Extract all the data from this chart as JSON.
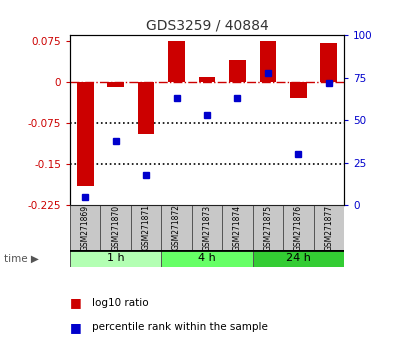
{
  "title": "GDS3259 / 40884",
  "samples": [
    "GSM271869",
    "GSM271870",
    "GSM271871",
    "GSM271872",
    "GSM271873",
    "GSM271874",
    "GSM271875",
    "GSM271876",
    "GSM271877"
  ],
  "log10_ratio": [
    -0.19,
    -0.01,
    -0.095,
    0.075,
    0.01,
    0.04,
    0.075,
    -0.03,
    0.072
  ],
  "percentile_rank": [
    5,
    38,
    18,
    63,
    53,
    63,
    78,
    30,
    72
  ],
  "time_groups": [
    {
      "label": "1 h",
      "start": 0,
      "end": 3,
      "color": "#b3ffb3"
    },
    {
      "label": "4 h",
      "start": 3,
      "end": 6,
      "color": "#66ff66"
    },
    {
      "label": "24 h",
      "start": 6,
      "end": 9,
      "color": "#33cc33"
    }
  ],
  "ylim_left": [
    -0.225,
    0.085
  ],
  "ylim_right": [
    0,
    100
  ],
  "bar_color": "#cc0000",
  "dot_color": "#0000cc",
  "dashed_line_color": "#cc0000",
  "dotted_line_color": "#000000",
  "yticks_left": [
    0.075,
    0,
    -0.075,
    -0.15,
    -0.225
  ],
  "yticks_right": [
    100,
    75,
    50,
    25,
    0
  ],
  "legend_bar_label": "log10 ratio",
  "legend_dot_label": "percentile rank within the sample",
  "time_label": "time",
  "title_color": "#333333",
  "bar_width": 0.55,
  "dot_size": 5
}
